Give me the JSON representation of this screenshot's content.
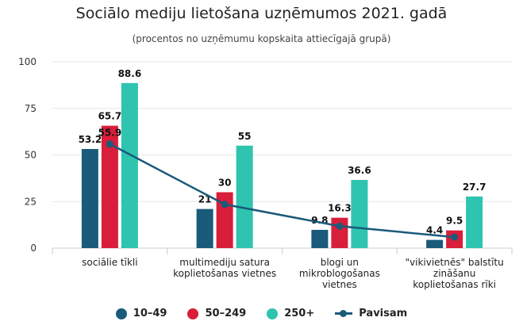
{
  "chart_data": {
    "type": "bar",
    "title": "Sociālo mediju lietošana uzņēmumos 2021. gadā",
    "subtitle": "(procentos no uzņēmumu kopskaita attiecīgajā grupā)",
    "ylim": [
      0,
      100
    ],
    "yticks": [
      0,
      25,
      50,
      75,
      100
    ],
    "categories": [
      [
        "sociālie tīkli"
      ],
      [
        "multimediju satura",
        "koplietošanas vietnes"
      ],
      [
        "blogi un",
        "mikroblogošanas",
        "vietnes"
      ],
      [
        "\"vikivietnēs\" balstītu",
        "zināšanu",
        "koplietošanas rīki"
      ]
    ],
    "series": [
      {
        "name": "10–49",
        "color": "#1a5a7a",
        "values": [
          53.2,
          21,
          9.8,
          4.4
        ]
      },
      {
        "name": "50–249",
        "color": "#d81e3a",
        "values": [
          65.7,
          30,
          16.3,
          9.5
        ]
      },
      {
        "name": "250+",
        "color": "#2ec4b0",
        "values": [
          88.6,
          55,
          36.6,
          27.7
        ]
      }
    ],
    "line_series": {
      "name": "Pavisam",
      "color": "#1a5a7a",
      "values": [
        55.9,
        23.5,
        11.8,
        5.9
      ]
    }
  }
}
